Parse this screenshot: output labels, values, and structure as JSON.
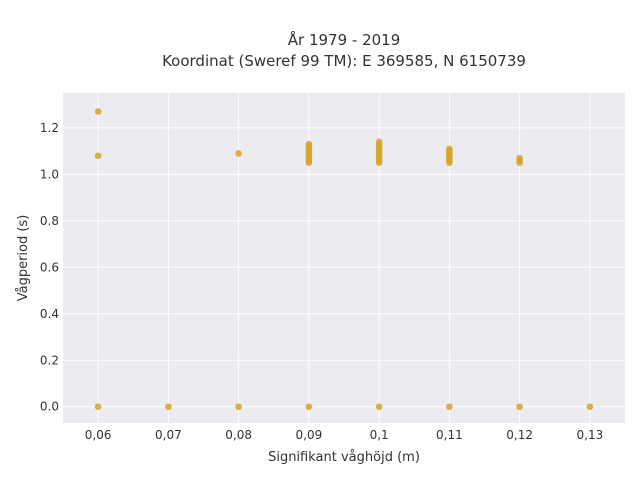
{
  "chart_data": {
    "type": "scatter",
    "title_lines": [
      "År 1979 - 2019",
      "Koordinat (Sweref 99 TM): E 369585, N 6150739"
    ],
    "xlabel": "Signifikant våghöjd (m)",
    "ylabel": "Vågperiod (s)",
    "x_categories": [
      0.06,
      0.07,
      0.08,
      0.09,
      0.1,
      0.11,
      0.12,
      0.13
    ],
    "x_tick_labels": [
      "0,06",
      "0,07",
      "0,08",
      "0,09",
      "0,1",
      "0,11",
      "0,12",
      "0,13"
    ],
    "xlim": [
      0.055,
      0.135
    ],
    "y_ticks": [
      0,
      0.2,
      0.4,
      0.6,
      0.8,
      1.0,
      1.2
    ],
    "y_tick_labels": [
      "0.0",
      "0.2",
      "0.4",
      "0.6",
      "0.8",
      "1.0",
      "1.2"
    ],
    "ylim": [
      -0.07,
      1.35
    ],
    "grid": true,
    "legend": "none",
    "point_color": "#d4a528",
    "plot_background": "#ebebf0",
    "points": [
      {
        "x": 0.06,
        "y": 1.27
      },
      {
        "x": 0.06,
        "y": 1.08
      },
      {
        "x": 0.06,
        "y": 0.0
      },
      {
        "x": 0.07,
        "y": 0.0
      },
      {
        "x": 0.08,
        "y": 1.09
      },
      {
        "x": 0.08,
        "y": 0.0
      },
      {
        "x": 0.09,
        "y": 1.13
      },
      {
        "x": 0.09,
        "y": 1.12
      },
      {
        "x": 0.09,
        "y": 1.11
      },
      {
        "x": 0.09,
        "y": 1.1
      },
      {
        "x": 0.09,
        "y": 1.09
      },
      {
        "x": 0.09,
        "y": 1.08
      },
      {
        "x": 0.09,
        "y": 1.07
      },
      {
        "x": 0.09,
        "y": 1.06
      },
      {
        "x": 0.09,
        "y": 1.05
      },
      {
        "x": 0.09,
        "y": 0.0
      },
      {
        "x": 0.1,
        "y": 1.14
      },
      {
        "x": 0.1,
        "y": 1.13
      },
      {
        "x": 0.1,
        "y": 1.12
      },
      {
        "x": 0.1,
        "y": 1.11
      },
      {
        "x": 0.1,
        "y": 1.1
      },
      {
        "x": 0.1,
        "y": 1.09
      },
      {
        "x": 0.1,
        "y": 1.08
      },
      {
        "x": 0.1,
        "y": 1.07
      },
      {
        "x": 0.1,
        "y": 1.06
      },
      {
        "x": 0.1,
        "y": 1.05
      },
      {
        "x": 0.1,
        "y": 0.0
      },
      {
        "x": 0.11,
        "y": 1.11
      },
      {
        "x": 0.11,
        "y": 1.1
      },
      {
        "x": 0.11,
        "y": 1.09
      },
      {
        "x": 0.11,
        "y": 1.08
      },
      {
        "x": 0.11,
        "y": 1.07
      },
      {
        "x": 0.11,
        "y": 1.06
      },
      {
        "x": 0.11,
        "y": 1.05
      },
      {
        "x": 0.11,
        "y": 0.0
      },
      {
        "x": 0.12,
        "y": 1.07
      },
      {
        "x": 0.12,
        "y": 1.06
      },
      {
        "x": 0.12,
        "y": 1.05
      },
      {
        "x": 0.12,
        "y": 0.0
      },
      {
        "x": 0.13,
        "y": 0.0
      }
    ]
  }
}
